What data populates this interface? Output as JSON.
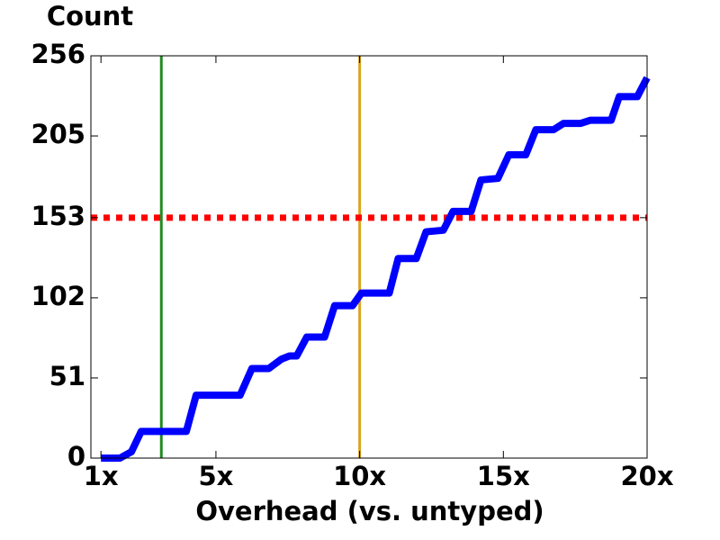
{
  "chart_data": {
    "type": "line",
    "ylabel": "Count",
    "xlabel": "Overhead  (vs. untyped)",
    "x": [
      1,
      1.66,
      2.06,
      2.4,
      3.97,
      4.31,
      5.84,
      6.25,
      6.84,
      7.28,
      7.56,
      7.81,
      8.16,
      8.78,
      9.13,
      9.75,
      10.06,
      11.03,
      11.34,
      11.97,
      12.31,
      12.91,
      13.25,
      13.88,
      14.22,
      14.81,
      15.19,
      15.78,
      16.13,
      16.75,
      17.09,
      17.69,
      18.03,
      18.75,
      19.03,
      19.66,
      20
    ],
    "series": [
      {
        "color": "#0000ff",
        "values": [
          0,
          0,
          4,
          17,
          17,
          40,
          40,
          57,
          57,
          63,
          65,
          65,
          77,
          77,
          97,
          97,
          105,
          105,
          127,
          127,
          144,
          145,
          157,
          157,
          177,
          178,
          193,
          193,
          209,
          209,
          213,
          213,
          215,
          215,
          230,
          230,
          242
        ]
      }
    ],
    "vlines": [
      {
        "x": 3.1,
        "color": "#228b22"
      },
      {
        "x": 10,
        "color": "#daa520"
      }
    ],
    "hlines": [
      {
        "y": 153,
        "color": "#ff0000",
        "dashed": true
      }
    ],
    "xlim": [
      0.65,
      20
    ],
    "ylim": [
      0,
      256
    ],
    "xticks": [
      {
        "value": 1,
        "label": "1x"
      },
      {
        "value": 5,
        "label": "5x"
      },
      {
        "value": 10,
        "label": "10x"
      },
      {
        "value": 15,
        "label": "15x"
      },
      {
        "value": 20,
        "label": "20x"
      }
    ],
    "yticks": [
      0,
      51,
      102,
      153,
      205,
      256
    ]
  }
}
